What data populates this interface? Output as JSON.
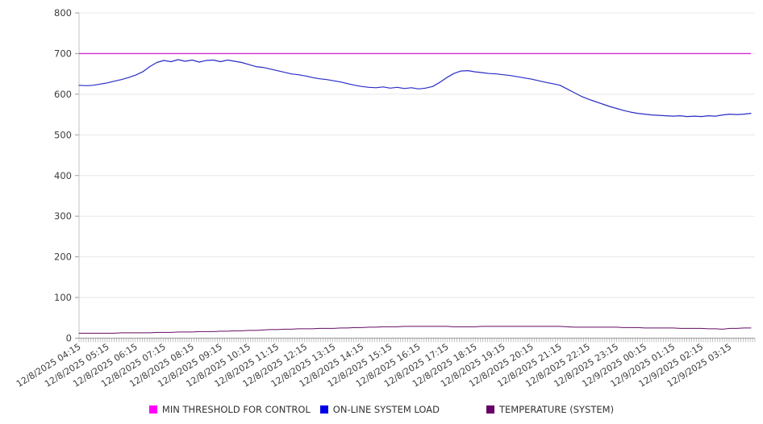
{
  "chart_data": {
    "type": "line",
    "title": "",
    "xlabel": "",
    "ylabel": "",
    "grid": "horizontal",
    "legend_position": "bottom",
    "background": "#ffffff",
    "y_axis": {
      "range": [
        0,
        800
      ],
      "ticks": [
        0,
        100,
        200,
        300,
        400,
        500,
        600,
        700,
        800
      ]
    },
    "x_axis": {
      "start": "12/8/2025 04:15",
      "step_minutes": 15,
      "minor_tick_count": 288,
      "tick_labels": [
        "12/8/2025 04:15",
        "12/8/2025 05:15",
        "12/8/2025 06:15",
        "12/8/2025 07:15",
        "12/8/2025 08:15",
        "12/8/2025 09:15",
        "12/8/2025 10:15",
        "12/8/2025 11:15",
        "12/8/2025 12:15",
        "12/8/2025 13:15",
        "12/8/2025 14:15",
        "12/8/2025 15:15",
        "12/8/2025 16:15",
        "12/8/2025 17:15",
        "12/8/2025 18:15",
        "12/8/2025 19:15",
        "12/8/2025 20:15",
        "12/8/2025 21:15",
        "12/8/2025 22:15",
        "12/8/2025 23:15",
        "12/9/2025 00:15",
        "12/9/2025 01:15",
        "12/9/2025 02:15",
        "12/9/2025 03:15"
      ]
    },
    "colors": {
      "grid": "#e8e8e8",
      "axis": "#9a9a9a",
      "minor_tick": "#aaaaaa",
      "tick_label": "#3d3d3d"
    },
    "series": [
      {
        "name": "MIN THRESHOLD FOR CONTROL",
        "kind": "threshold",
        "value": 700,
        "color": "#d32bd3",
        "swatch": "#ff00ff"
      },
      {
        "name": "ON-LINE SYSTEM LOAD",
        "kind": "line",
        "color": "#2b2bc8",
        "swatch": "#0000e6",
        "values": [
          622,
          621,
          622,
          625,
          628,
          632,
          636,
          641,
          647,
          655,
          668,
          678,
          683,
          680,
          685,
          681,
          684,
          679,
          683,
          684,
          680,
          684,
          681,
          678,
          673,
          668,
          666,
          662,
          658,
          654,
          650,
          648,
          645,
          641,
          638,
          636,
          633,
          630,
          626,
          622,
          619,
          617,
          616,
          618,
          615,
          617,
          614,
          616,
          613,
          615,
          619,
          629,
          641,
          651,
          657,
          658,
          655,
          653,
          651,
          650,
          648,
          646,
          643,
          640,
          637,
          633,
          629,
          626,
          622,
          613,
          604,
          595,
          588,
          582,
          576,
          570,
          565,
          560,
          556,
          553,
          551,
          549,
          548,
          547,
          546,
          547,
          545,
          546,
          545,
          547,
          546,
          549,
          551,
          550,
          551,
          553
        ]
      },
      {
        "name": "TEMPERATURE (SYSTEM)",
        "kind": "line",
        "color": "#660b66",
        "swatch": "#660066",
        "values": [
          12,
          12,
          12,
          12,
          12,
          12,
          13,
          13,
          13,
          13,
          13,
          14,
          14,
          14,
          15,
          15,
          15,
          16,
          16,
          16,
          17,
          17,
          18,
          18,
          19,
          19,
          20,
          21,
          21,
          22,
          22,
          23,
          23,
          23,
          24,
          24,
          24,
          25,
          25,
          26,
          26,
          27,
          27,
          28,
          28,
          28,
          29,
          29,
          29,
          29,
          29,
          29,
          29,
          28,
          28,
          28,
          28,
          29,
          29,
          29,
          29,
          29,
          29,
          29,
          29,
          29,
          29,
          29,
          29,
          28,
          27,
          27,
          27,
          27,
          27,
          27,
          27,
          26,
          26,
          26,
          25,
          25,
          25,
          25,
          25,
          24,
          24,
          24,
          24,
          23,
          23,
          22,
          24,
          24,
          25,
          25
        ]
      }
    ],
    "legend": [
      {
        "label": "MIN THRESHOLD FOR CONTROL",
        "swatch": "#ff00ff"
      },
      {
        "label": "ON-LINE SYSTEM LOAD",
        "swatch": "#0000e6"
      },
      {
        "label": "TEMPERATURE (SYSTEM)",
        "swatch": "#660066"
      }
    ]
  }
}
